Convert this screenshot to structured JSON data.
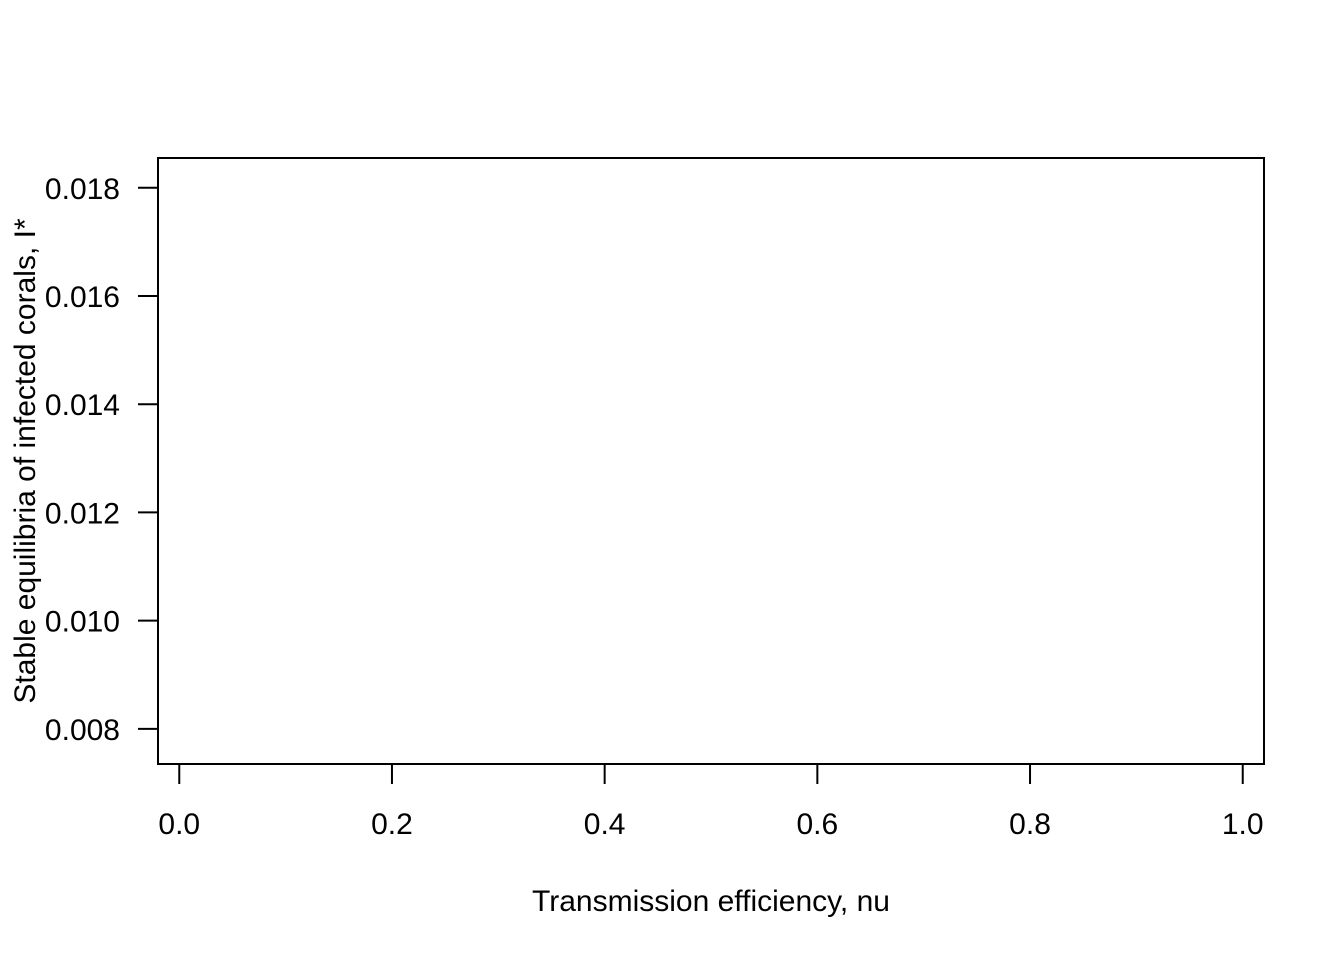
{
  "chart_data": {
    "type": "line",
    "title": "",
    "xlabel": "Transmission efficiency, nu",
    "ylabel": "Stable equilibria of infected corals, I*",
    "xlim": [
      -0.02,
      1.02
    ],
    "ylim": [
      0.00735,
      0.01855
    ],
    "x_ticks": [
      0.0,
      0.2,
      0.4,
      0.6,
      0.8,
      1.0
    ],
    "x_tick_labels": [
      "0.0",
      "0.2",
      "0.4",
      "0.6",
      "0.8",
      "1.0"
    ],
    "y_ticks": [
      0.008,
      0.01,
      0.012,
      0.014,
      0.016,
      0.018
    ],
    "y_tick_labels": [
      "0.008",
      "0.010",
      "0.012",
      "0.014",
      "0.016",
      "0.018"
    ],
    "series": [],
    "grid": false,
    "legend": "none"
  }
}
